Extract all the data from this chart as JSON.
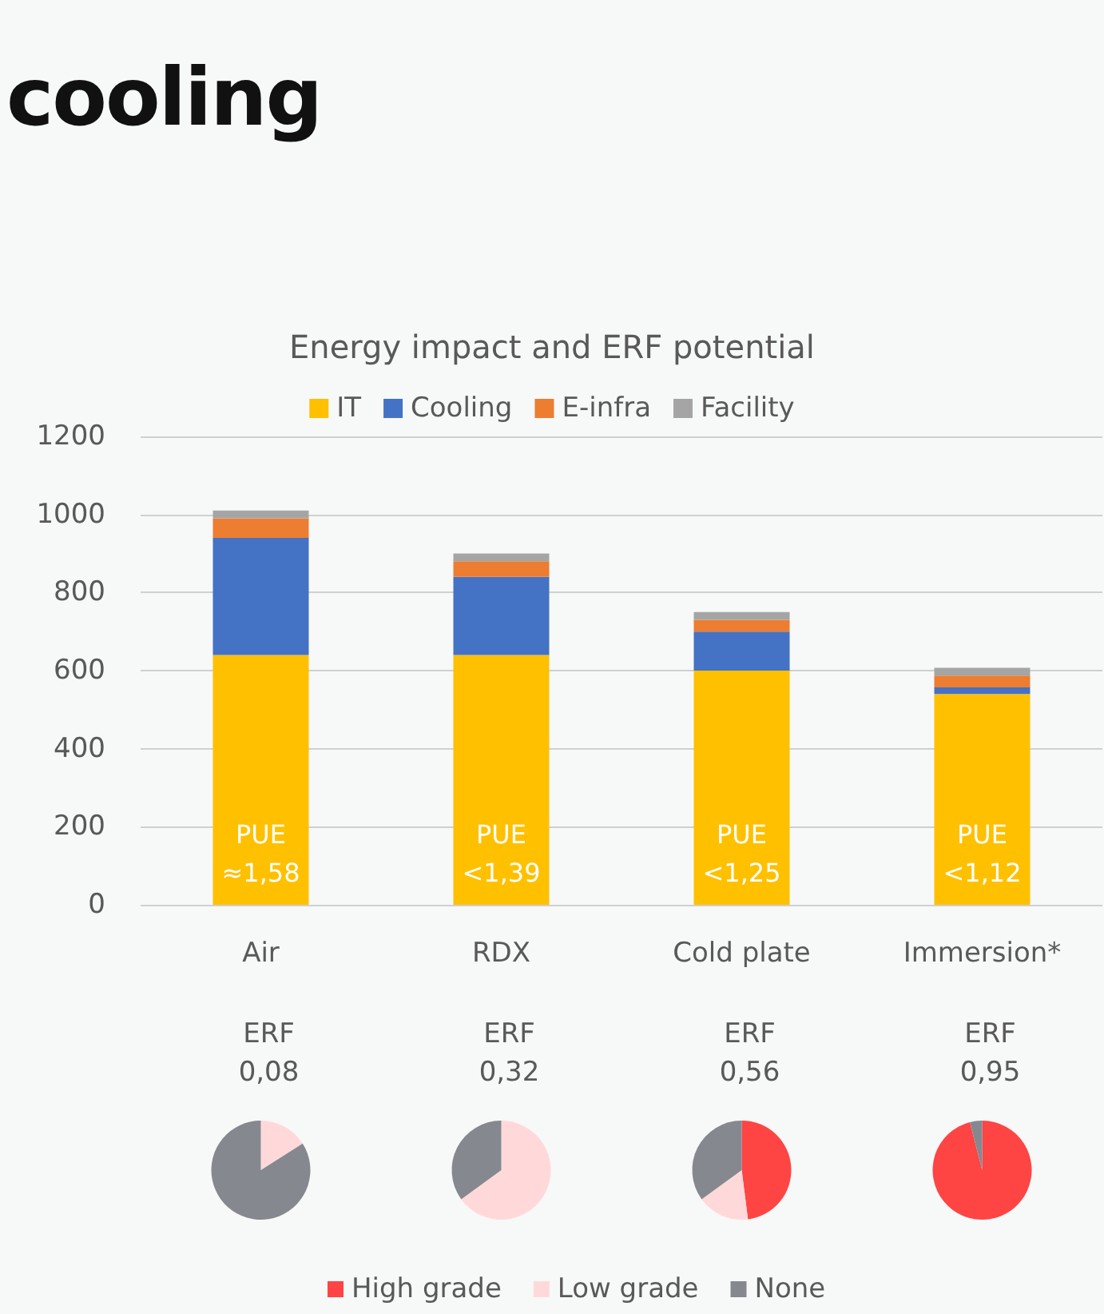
{
  "chart_data": [
    {
      "type": "bar",
      "title": "Energy impact and ERF potential",
      "stacked": true,
      "categories": [
        "Air",
        "RDX",
        "Cold plate",
        "Immersion*"
      ],
      "series": [
        {
          "name": "IT",
          "color": "#ffc000",
          "values": [
            640,
            640,
            600,
            540
          ]
        },
        {
          "name": "Cooling",
          "color": "#4472c4",
          "values": [
            300,
            200,
            100,
            17
          ]
        },
        {
          "name": "E-infra",
          "color": "#ed7d31",
          "values": [
            50,
            40,
            30,
            30
          ]
        },
        {
          "name": "Facility",
          "color": "#a5a5a5",
          "values": [
            20,
            20,
            20,
            20
          ]
        }
      ],
      "ylim": [
        0,
        1200
      ],
      "yticks": [
        0,
        200,
        400,
        600,
        800,
        1000,
        1200
      ],
      "grid": "y",
      "legend": "top",
      "annotations": [
        "cooling",
        "PUE\n≈1,58",
        "PUE\n<1,39",
        "PUE\n<1,25",
        "PUE\n<1,12"
      ]
    },
    {
      "type": "pie",
      "categories": [
        "High grade",
        "Low grade",
        "None"
      ],
      "colors": [
        "#ff4444",
        "#ffd9da",
        "#868890"
      ],
      "legend": "bottom",
      "series": [
        {
          "values": [
            0,
            16,
            84
          ]
        },
        {
          "values": [
            0,
            65,
            35
          ]
        },
        {
          "values": [
            48,
            17,
            35
          ]
        },
        {
          "values": [
            96,
            0,
            4
          ]
        }
      ],
      "annotations": [
        "ERF\n0,08",
        "ERF\n0,32",
        "ERF\n0,56",
        "ERF\n0,95"
      ]
    }
  ]
}
